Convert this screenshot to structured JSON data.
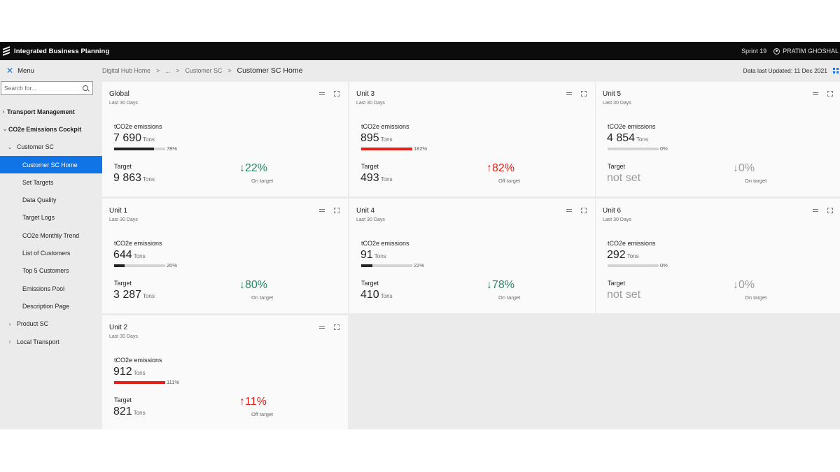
{
  "app": {
    "title": "Integrated Business Planning",
    "sprint": "Sprint 19",
    "user": "PRATIM GHOSHAL"
  },
  "sidebar": {
    "menu_label": "Menu",
    "search_placeholder": "Search for...",
    "items": [
      {
        "label": "Transport Management",
        "chevron": "›"
      },
      {
        "label": "CO2e Emissions Cockpit",
        "chevron": "⌄"
      },
      {
        "label": "Customer SC",
        "chevron": "⌄"
      },
      {
        "label": "Customer SC Home"
      },
      {
        "label": "Set Targets"
      },
      {
        "label": "Data Quality"
      },
      {
        "label": "Target Logs"
      },
      {
        "label": "CO2e Monthly Trend"
      },
      {
        "label": "List of Customers"
      },
      {
        "label": "Top 5 Customers"
      },
      {
        "label": "Emissions Pool"
      },
      {
        "label": "Description Page"
      },
      {
        "label": "Product SC",
        "chevron": "›"
      },
      {
        "label": "Local Transport",
        "chevron": "›"
      }
    ]
  },
  "header": {
    "breadcrumb": [
      "Digital Hub Home",
      "...",
      "Customer SC"
    ],
    "separator": ">",
    "current": "Customer SC Home",
    "updated": "Data last Updated: 11 Dec 2021"
  },
  "labels": {
    "emissions": "tCO2e emissions",
    "target": "Target",
    "unit": "Tons"
  },
  "colors": {
    "accent": "#1174e6",
    "on_target": "#288964",
    "off_target": "#e32119",
    "neutral": "#9a9a9a"
  },
  "tiles": [
    {
      "title": "Global",
      "subtitle": "Last 30 Days",
      "emissions": "7 690",
      "progress": 78,
      "progress_label": "78%",
      "bar_color": "dark",
      "target": "9 863",
      "target_unit": "Tons",
      "delta": "↓22%",
      "status": "On target",
      "tone": "green"
    },
    {
      "title": "Unit 3",
      "subtitle": "Last 30 Days",
      "emissions": "895",
      "progress": 100,
      "progress_label": "182%",
      "bar_color": "red",
      "target": "493",
      "target_unit": "Tons",
      "delta": "↑82%",
      "status": "Off target",
      "tone": "red"
    },
    {
      "title": "Unit 5",
      "subtitle": "Last 30 Days",
      "emissions": "4 854",
      "progress": 0,
      "progress_label": "0%",
      "bar_color": "dark",
      "target": "not set",
      "target_unit": "",
      "delta": "↓0%",
      "status": "On target",
      "tone": "grey"
    },
    {
      "title": "Unit 1",
      "subtitle": "Last 30 Days",
      "emissions": "644",
      "progress": 20,
      "progress_label": "20%",
      "bar_color": "dark",
      "target": "3 287",
      "target_unit": "Tons",
      "delta": "↓80%",
      "status": "On target",
      "tone": "green"
    },
    {
      "title": "Unit 4",
      "subtitle": "Last 30 Days",
      "emissions": "91",
      "progress": 22,
      "progress_label": "22%",
      "bar_color": "dark",
      "target": "410",
      "target_unit": "Tons",
      "delta": "↓78%",
      "status": "On target",
      "tone": "green"
    },
    {
      "title": "Unit 6",
      "subtitle": "Last 30 Days",
      "emissions": "292",
      "progress": 0,
      "progress_label": "0%",
      "bar_color": "dark",
      "target": "not set",
      "target_unit": "",
      "delta": "↓0%",
      "status": "On target",
      "tone": "grey"
    },
    {
      "title": "Unit 2",
      "subtitle": "Last 30 Days",
      "emissions": "912",
      "progress": 100,
      "progress_label": "111%",
      "bar_color": "red",
      "target": "821",
      "target_unit": "Tons",
      "delta": "↑11%",
      "status": "Off target",
      "tone": "red"
    }
  ]
}
